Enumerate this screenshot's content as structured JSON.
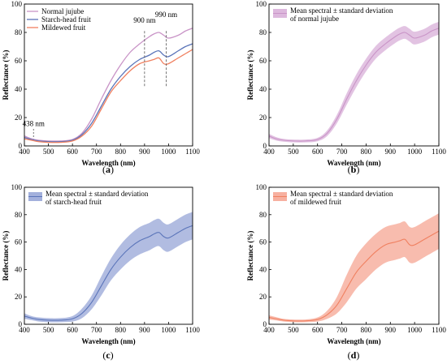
{
  "chart_data": [
    {
      "type": "line",
      "panel_label": "(a)",
      "xlabel": "Wavelength (nm)",
      "ylabel": "Reflectance (%)",
      "xlim": [
        400,
        1100
      ],
      "ylim": [
        0,
        100
      ],
      "xticks": [
        "400",
        "500",
        "600",
        "700",
        "800",
        "900",
        "1000",
        "1100"
      ],
      "yticks": [
        "0",
        "20",
        "40",
        "60",
        "80",
        "100"
      ],
      "legend_position": "top-left",
      "x": [
        400,
        430,
        460,
        500,
        550,
        600,
        640,
        680,
        720,
        760,
        800,
        840,
        880,
        920,
        940,
        960,
        980,
        1000,
        1040,
        1070,
        1100
      ],
      "series": [
        {
          "name": "Normal jujube",
          "color": "#c994c7",
          "values": [
            7,
            5,
            4,
            3.5,
            3.5,
            4.5,
            9,
            19,
            33,
            46,
            57,
            66,
            72,
            77,
            79,
            80,
            78,
            76,
            78,
            81,
            83
          ]
        },
        {
          "name": "Starch-head fruit",
          "color": "#5a74b9",
          "values": [
            6,
            4.5,
            3.5,
            3,
            3,
            4,
            8,
            16,
            28,
            40,
            49,
            56,
            61,
            64,
            66,
            67,
            64,
            63,
            67,
            70,
            72
          ]
        },
        {
          "name": "Mildewed fruit",
          "color": "#f08060",
          "values": [
            5,
            4,
            3,
            2.5,
            2.5,
            3.5,
            7,
            14,
            26,
            38,
            46,
            53,
            58,
            60,
            61,
            62,
            58,
            58,
            62,
            65,
            68
          ]
        }
      ],
      "annotations": [
        {
          "text": "438 nm",
          "x": 438,
          "y": 6
        },
        {
          "text": "900 nm",
          "x": 900,
          "y": 78
        },
        {
          "text": "990 nm",
          "x": 990,
          "y": 76
        }
      ]
    },
    {
      "type": "area",
      "panel_label": "(b)",
      "xlabel": "Wavelength (nm)",
      "ylabel": "Reflectance (%)",
      "xlim": [
        400,
        1100
      ],
      "ylim": [
        0,
        100
      ],
      "xticks": [
        "400",
        "500",
        "600",
        "700",
        "800",
        "900",
        "1000",
        "1100"
      ],
      "yticks": [
        "0",
        "20",
        "40",
        "60",
        "80",
        "100"
      ],
      "legend_position": "top-left",
      "legend": [
        "Mean spectral ± standard deviation",
        "of normal jujube"
      ],
      "color": "#c994c7",
      "fill": "#ddb8dd",
      "x": [
        400,
        430,
        460,
        500,
        550,
        600,
        640,
        680,
        720,
        760,
        800,
        840,
        880,
        920,
        940,
        960,
        980,
        1000,
        1040,
        1070,
        1100
      ],
      "mean": [
        7,
        5,
        4,
        3.5,
        3.5,
        4.5,
        9,
        19,
        33,
        46,
        57,
        66,
        72,
        77,
        79,
        80,
        78,
        76,
        78,
        81,
        83
      ],
      "std": [
        1.5,
        1.2,
        1,
        1,
        1,
        1.2,
        2,
        3,
        4,
        4.5,
        4.5,
        4.5,
        4.5,
        4.5,
        4.5,
        4.5,
        4.5,
        4.5,
        4.5,
        4.5,
        4.5
      ]
    },
    {
      "type": "area",
      "panel_label": "(c)",
      "xlabel": "Wavelength (nm)",
      "ylabel": "Reflectance (%)",
      "xlim": [
        400,
        1100
      ],
      "ylim": [
        0,
        100
      ],
      "xticks": [
        "400",
        "500",
        "600",
        "700",
        "800",
        "900",
        "1000",
        "1100"
      ],
      "yticks": [
        "0",
        "20",
        "40",
        "60",
        "80",
        "100"
      ],
      "legend_position": "top-left",
      "legend": [
        "Mean spectral ± standard deviation",
        "of starch-head fruit"
      ],
      "color": "#5a74b9",
      "fill": "#a3b0dc",
      "x": [
        400,
        430,
        460,
        500,
        550,
        600,
        640,
        680,
        720,
        760,
        800,
        840,
        880,
        920,
        940,
        960,
        980,
        1000,
        1040,
        1070,
        1100
      ],
      "mean": [
        6,
        4.5,
        3.5,
        3,
        3,
        4,
        8,
        16,
        28,
        40,
        49,
        56,
        61,
        64,
        66,
        67,
        64,
        63,
        67,
        70,
        72
      ],
      "std": [
        2,
        1.5,
        1.5,
        1.5,
        1.5,
        2,
        3.5,
        5,
        7,
        8,
        9,
        9.5,
        10,
        10,
        10,
        10,
        10,
        10,
        10,
        10,
        10
      ]
    },
    {
      "type": "area",
      "panel_label": "(d)",
      "xlabel": "Wavelength (nm)",
      "ylabel": "Reflectance (%)",
      "xlim": [
        400,
        1100
      ],
      "ylim": [
        0,
        100
      ],
      "xticks": [
        "400",
        "500",
        "600",
        "700",
        "800",
        "900",
        "1000",
        "1100"
      ],
      "yticks": [
        "0",
        "20",
        "40",
        "60",
        "80",
        "100"
      ],
      "legend_position": "top-left",
      "legend": [
        "Mean spectral ± standard deviation",
        "of mildewed fruit"
      ],
      "color": "#f08060",
      "fill": "#f7b0a0",
      "x": [
        400,
        430,
        460,
        500,
        550,
        600,
        640,
        680,
        720,
        760,
        800,
        840,
        880,
        920,
        940,
        960,
        980,
        1000,
        1040,
        1070,
        1100
      ],
      "mean": [
        5,
        4,
        3,
        2.5,
        2.5,
        3.5,
        7,
        14,
        26,
        38,
        46,
        53,
        58,
        60,
        61,
        62,
        58,
        58,
        62,
        65,
        68
      ],
      "std": [
        1.5,
        1.2,
        1,
        1,
        1,
        1.5,
        3,
        6,
        10,
        12,
        13,
        13,
        13,
        13,
        13,
        13,
        13,
        13,
        13,
        13,
        13
      ]
    }
  ]
}
